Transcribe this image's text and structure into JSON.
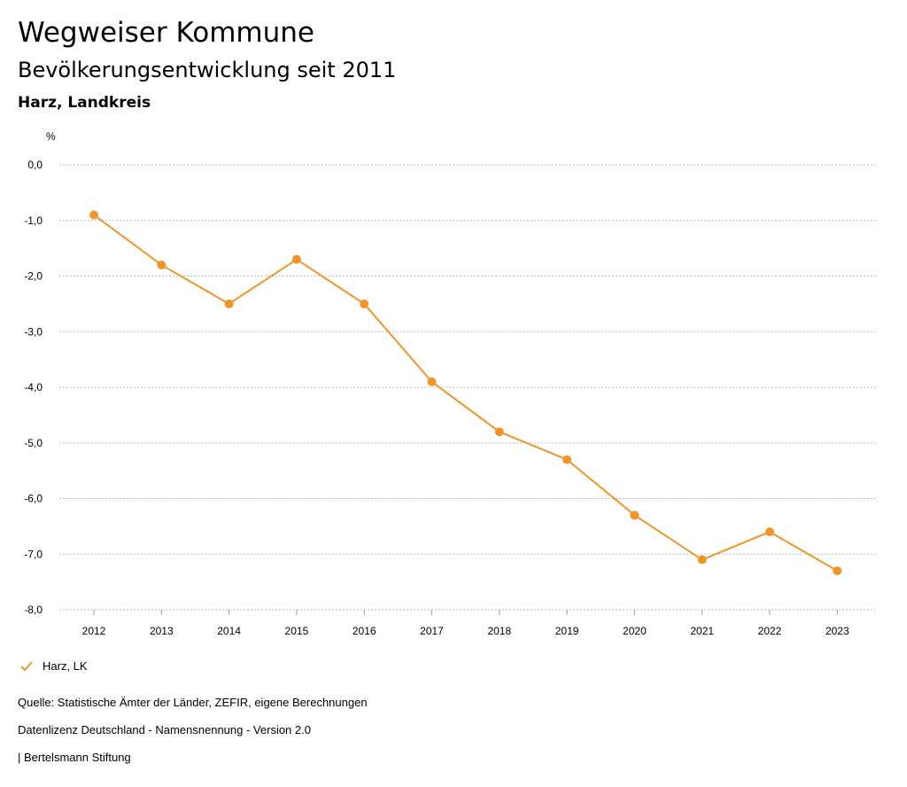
{
  "header": {
    "title": "Wegweiser Kommune",
    "subtitle": "Bevölkerungsentwicklung seit 2011",
    "region": "Harz, Landkreis"
  },
  "legend": {
    "label": "Harz, LK",
    "icon": "check-icon"
  },
  "footer": {
    "source": "Quelle: Statistische Ämter der Länder, ZEFIR, eigene Berechnungen",
    "license": "Datenlizenz Deutschland - Namensnennung - Version 2.0",
    "publisher": "| Bertelsmann Stiftung"
  },
  "colors": {
    "series": "#f0952a",
    "grid": "#bdbdbd"
  },
  "chart_data": {
    "type": "line",
    "ylabel": "%",
    "ylim": [
      -8,
      0
    ],
    "yticks": [
      0,
      -1,
      -2,
      -3,
      -4,
      -5,
      -6,
      -7,
      -8
    ],
    "ytick_labels": [
      "0,0",
      "-1,0",
      "-2,0",
      "-3,0",
      "-4,0",
      "-5,0",
      "-6,0",
      "-7,0",
      "-8,0"
    ],
    "categories": [
      "2012",
      "2013",
      "2014",
      "2015",
      "2016",
      "2017",
      "2018",
      "2019",
      "2020",
      "2021",
      "2022",
      "2023"
    ],
    "series": [
      {
        "name": "Harz, LK",
        "values": [
          -0.9,
          -1.8,
          -2.5,
          -1.7,
          -2.5,
          -3.9,
          -4.8,
          -5.3,
          -6.3,
          -7.1,
          -6.6,
          -7.3
        ]
      }
    ],
    "grid": true,
    "legend_position": "bottom-left"
  }
}
